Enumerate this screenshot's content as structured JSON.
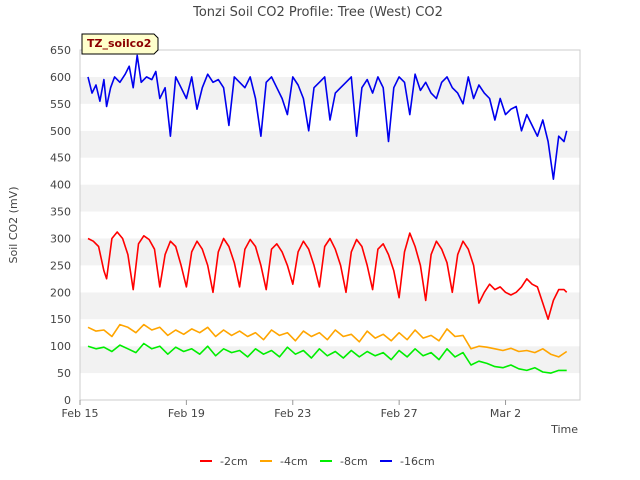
{
  "chart_data": {
    "type": "line",
    "title": "Tonzi Soil CO2 Profile: Tree (West) CO2",
    "xlabel": "Time",
    "ylabel": "Soil CO2 (mV)",
    "tag": "TZ_soilco2",
    "ylim": [
      0,
      650
    ],
    "yticks": [
      0,
      50,
      100,
      150,
      200,
      250,
      300,
      350,
      400,
      450,
      500,
      550,
      600,
      650
    ],
    "xlim": [
      0,
      18.8
    ],
    "xticks": [
      {
        "value": 0,
        "label": "Feb 15"
      },
      {
        "value": 4,
        "label": "Feb 19"
      },
      {
        "value": 8,
        "label": "Feb 23"
      },
      {
        "value": 12,
        "label": "Feb 27"
      },
      {
        "value": 16,
        "label": "Mar 2"
      }
    ],
    "grid": "horizontal bands",
    "legend_position": "bottom",
    "series": [
      {
        "name": "-2cm",
        "color": "#ff0000",
        "x": [
          0.3,
          0.5,
          0.7,
          0.9,
          1.0,
          1.2,
          1.4,
          1.6,
          1.8,
          2.0,
          2.2,
          2.4,
          2.6,
          2.8,
          3.0,
          3.2,
          3.4,
          3.6,
          3.8,
          4.0,
          4.2,
          4.4,
          4.6,
          4.8,
          5.0,
          5.2,
          5.4,
          5.6,
          5.8,
          6.0,
          6.2,
          6.4,
          6.6,
          6.8,
          7.0,
          7.2,
          7.4,
          7.6,
          7.8,
          8.0,
          8.2,
          8.4,
          8.6,
          8.8,
          9.0,
          9.2,
          9.4,
          9.6,
          9.8,
          10.0,
          10.2,
          10.4,
          10.6,
          10.8,
          11.0,
          11.2,
          11.4,
          11.6,
          11.8,
          12.0,
          12.2,
          12.4,
          12.6,
          12.8,
          13.0,
          13.2,
          13.4,
          13.6,
          13.8,
          14.0,
          14.2,
          14.4,
          14.6,
          14.8,
          15.0,
          15.2,
          15.4,
          15.6,
          15.8,
          16.0,
          16.2,
          16.4,
          16.6,
          16.8,
          17.0,
          17.2,
          17.4,
          17.6,
          17.8,
          18.0,
          18.2,
          18.3
        ],
        "values": [
          300,
          295,
          285,
          240,
          225,
          300,
          312,
          300,
          270,
          205,
          290,
          305,
          298,
          280,
          210,
          270,
          295,
          285,
          250,
          210,
          275,
          295,
          280,
          250,
          200,
          275,
          300,
          285,
          255,
          210,
          280,
          298,
          285,
          250,
          205,
          280,
          290,
          275,
          250,
          215,
          275,
          295,
          280,
          250,
          210,
          285,
          300,
          280,
          250,
          200,
          275,
          298,
          285,
          250,
          205,
          280,
          290,
          270,
          240,
          190,
          275,
          310,
          285,
          250,
          185,
          270,
          295,
          280,
          255,
          200,
          270,
          295,
          280,
          250,
          180,
          200,
          215,
          205,
          210,
          200,
          195,
          200,
          210,
          225,
          215,
          210,
          180,
          150,
          185,
          205,
          205,
          200
        ]
      },
      {
        "name": "-4cm",
        "color": "#ffa500",
        "x": [
          0.3,
          0.6,
          0.9,
          1.2,
          1.5,
          1.8,
          2.1,
          2.4,
          2.7,
          3.0,
          3.3,
          3.6,
          3.9,
          4.2,
          4.5,
          4.8,
          5.1,
          5.4,
          5.7,
          6.0,
          6.3,
          6.6,
          6.9,
          7.2,
          7.5,
          7.8,
          8.1,
          8.4,
          8.7,
          9.0,
          9.3,
          9.6,
          9.9,
          10.2,
          10.5,
          10.8,
          11.1,
          11.4,
          11.7,
          12.0,
          12.3,
          12.6,
          12.9,
          13.2,
          13.5,
          13.8,
          14.1,
          14.4,
          14.7,
          15.0,
          15.3,
          15.6,
          15.9,
          16.2,
          16.5,
          16.8,
          17.1,
          17.4,
          17.7,
          18.0,
          18.3
        ],
        "values": [
          135,
          128,
          130,
          118,
          140,
          135,
          125,
          140,
          130,
          135,
          120,
          130,
          122,
          132,
          125,
          135,
          118,
          130,
          120,
          128,
          118,
          125,
          112,
          130,
          120,
          125,
          110,
          128,
          118,
          125,
          112,
          130,
          118,
          122,
          108,
          128,
          115,
          122,
          110,
          125,
          112,
          130,
          115,
          120,
          110,
          132,
          118,
          120,
          95,
          100,
          98,
          95,
          92,
          96,
          90,
          92,
          88,
          95,
          85,
          80,
          90
        ]
      },
      {
        "name": "-8cm",
        "color": "#00ee00",
        "x": [
          0.3,
          0.6,
          0.9,
          1.2,
          1.5,
          1.8,
          2.1,
          2.4,
          2.7,
          3.0,
          3.3,
          3.6,
          3.9,
          4.2,
          4.5,
          4.8,
          5.1,
          5.4,
          5.7,
          6.0,
          6.3,
          6.6,
          6.9,
          7.2,
          7.5,
          7.8,
          8.1,
          8.4,
          8.7,
          9.0,
          9.3,
          9.6,
          9.9,
          10.2,
          10.5,
          10.8,
          11.1,
          11.4,
          11.7,
          12.0,
          12.3,
          12.6,
          12.9,
          13.2,
          13.5,
          13.8,
          14.1,
          14.4,
          14.7,
          15.0,
          15.3,
          15.6,
          15.9,
          16.2,
          16.5,
          16.8,
          17.1,
          17.4,
          17.7,
          18.0,
          18.3
        ],
        "values": [
          100,
          95,
          98,
          90,
          102,
          95,
          88,
          105,
          95,
          100,
          85,
          98,
          90,
          95,
          85,
          100,
          82,
          95,
          88,
          92,
          80,
          95,
          85,
          92,
          80,
          98,
          85,
          92,
          78,
          95,
          82,
          90,
          78,
          92,
          80,
          90,
          82,
          88,
          75,
          92,
          80,
          95,
          82,
          88,
          75,
          95,
          80,
          88,
          65,
          72,
          68,
          62,
          60,
          65,
          58,
          55,
          60,
          52,
          50,
          55,
          55
        ]
      },
      {
        "name": "-16cm",
        "color": "#0000ee",
        "x": [
          0.3,
          0.45,
          0.6,
          0.75,
          0.9,
          1.0,
          1.15,
          1.3,
          1.5,
          1.7,
          1.85,
          2.0,
          2.15,
          2.3,
          2.5,
          2.7,
          2.85,
          3.0,
          3.2,
          3.4,
          3.6,
          3.8,
          4.0,
          4.2,
          4.4,
          4.6,
          4.8,
          5.0,
          5.2,
          5.4,
          5.6,
          5.8,
          6.0,
          6.2,
          6.4,
          6.6,
          6.8,
          7.0,
          7.2,
          7.4,
          7.6,
          7.8,
          8.0,
          8.2,
          8.4,
          8.6,
          8.8,
          9.0,
          9.2,
          9.4,
          9.6,
          9.8,
          10.0,
          10.2,
          10.4,
          10.6,
          10.8,
          11.0,
          11.2,
          11.4,
          11.6,
          11.8,
          12.0,
          12.2,
          12.4,
          12.6,
          12.8,
          13.0,
          13.2,
          13.4,
          13.6,
          13.8,
          14.0,
          14.2,
          14.4,
          14.6,
          14.8,
          15.0,
          15.2,
          15.4,
          15.6,
          15.8,
          16.0,
          16.2,
          16.4,
          16.6,
          16.8,
          17.0,
          17.2,
          17.4,
          17.6,
          17.8,
          18.0,
          18.2,
          18.3
        ],
        "values": [
          600,
          570,
          585,
          555,
          595,
          545,
          580,
          600,
          590,
          605,
          620,
          580,
          640,
          590,
          600,
          595,
          610,
          560,
          580,
          490,
          600,
          580,
          560,
          600,
          540,
          580,
          605,
          590,
          595,
          580,
          510,
          600,
          590,
          580,
          600,
          560,
          490,
          590,
          600,
          580,
          560,
          530,
          600,
          585,
          560,
          500,
          580,
          590,
          600,
          520,
          570,
          580,
          590,
          600,
          490,
          580,
          595,
          570,
          600,
          580,
          480,
          580,
          600,
          590,
          530,
          605,
          575,
          590,
          570,
          560,
          590,
          600,
          580,
          570,
          550,
          600,
          560,
          585,
          570,
          560,
          520,
          560,
          530,
          540,
          545,
          500,
          530,
          510,
          490,
          520,
          480,
          410,
          490,
          480,
          500
        ]
      }
    ]
  }
}
